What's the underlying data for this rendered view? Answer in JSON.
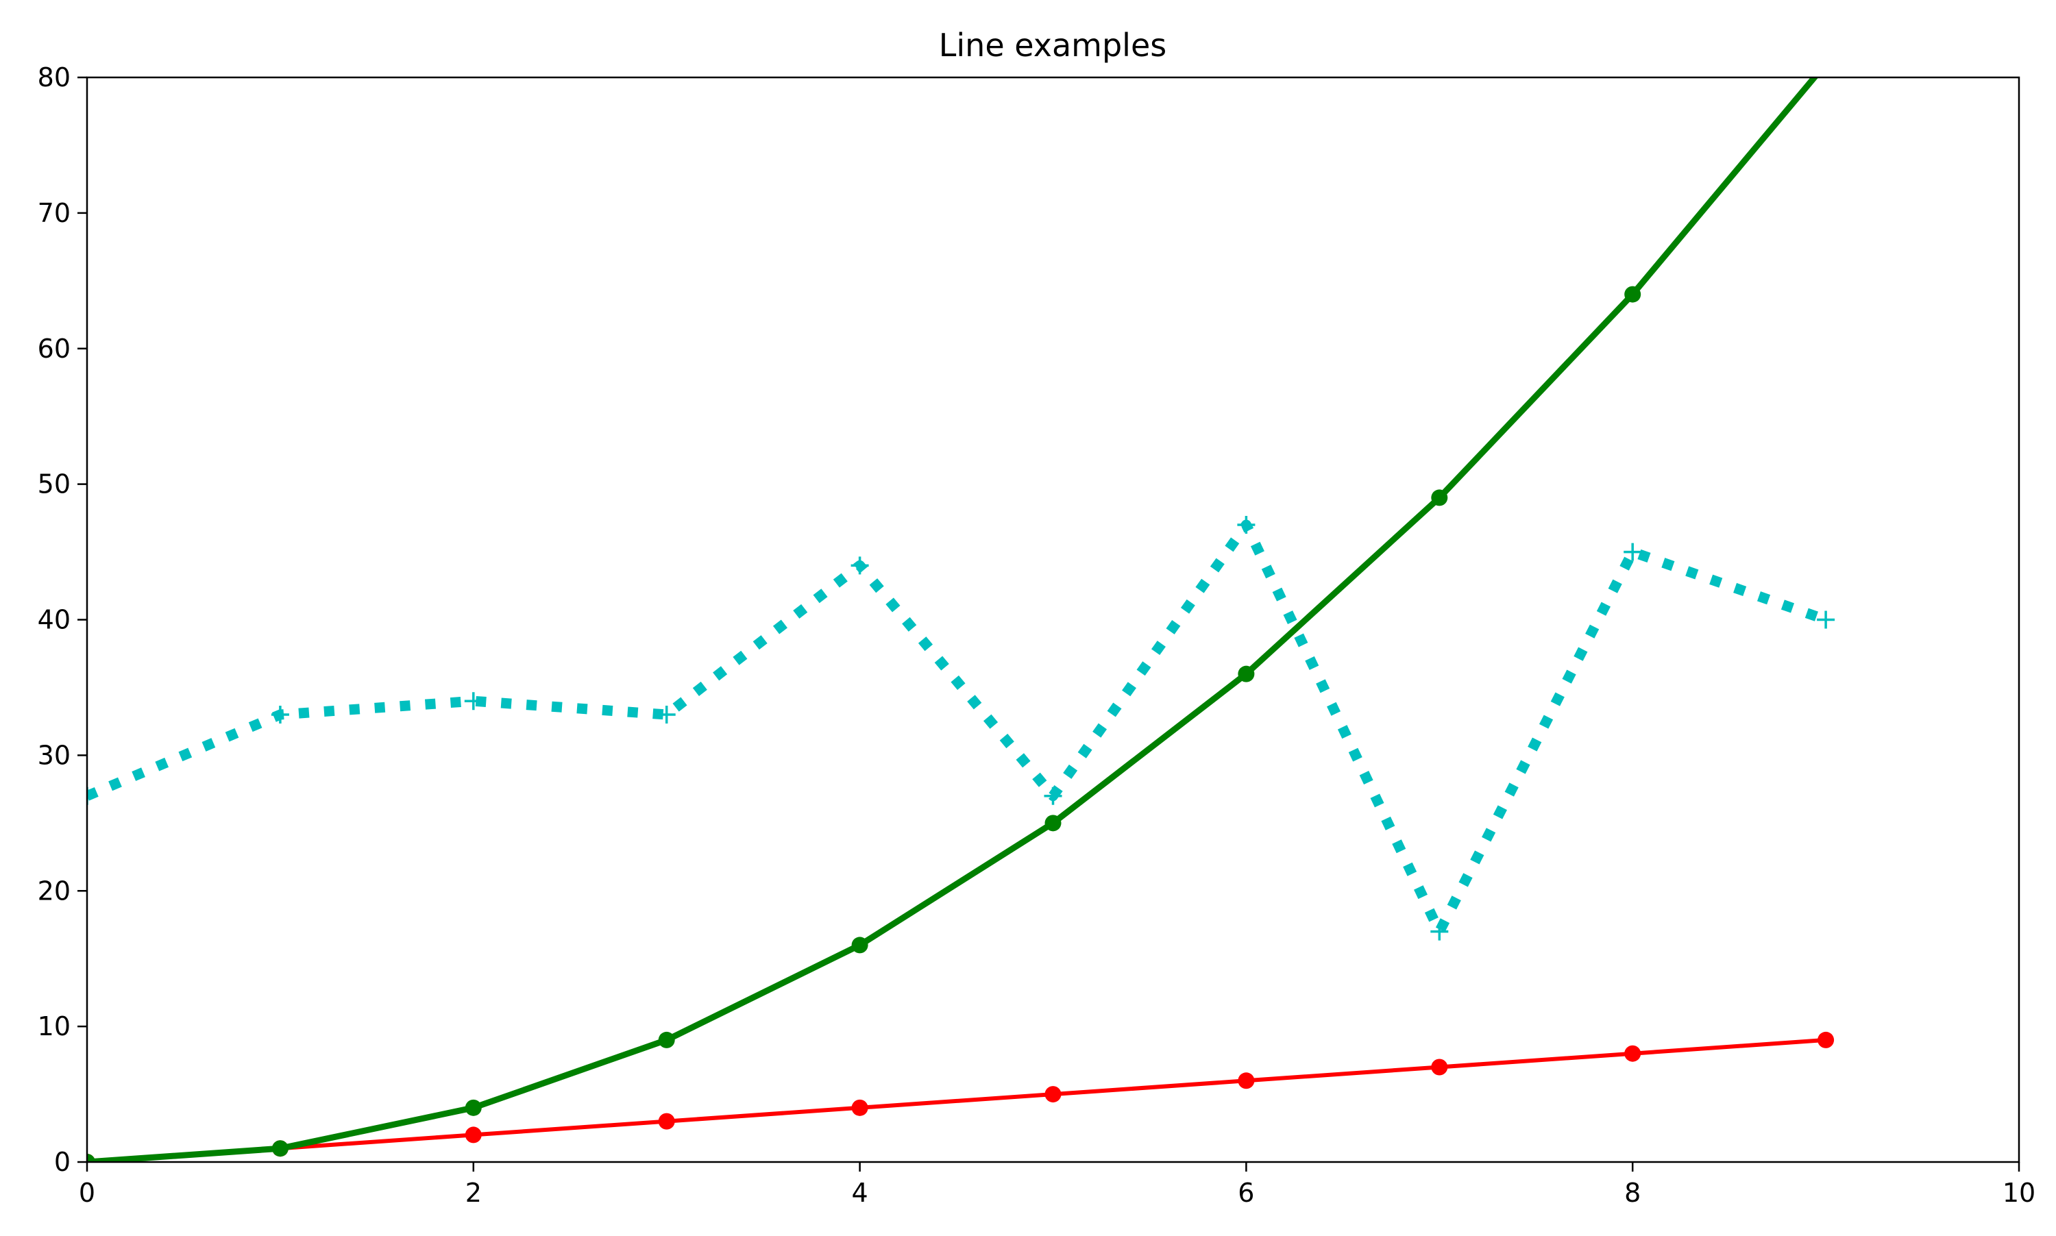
{
  "chart_data": {
    "type": "line",
    "title": "Line examples",
    "xlabel": "",
    "ylabel": "",
    "xlim": [
      0,
      10
    ],
    "ylim": [
      0,
      80
    ],
    "xticks": [
      0,
      2,
      4,
      6,
      8,
      10
    ],
    "yticks": [
      0,
      10,
      20,
      30,
      40,
      50,
      60,
      70,
      80
    ],
    "xtick_labels": [
      "0",
      "2",
      "4",
      "6",
      "8",
      "10"
    ],
    "ytick_labels": [
      "0",
      "10",
      "20",
      "30",
      "40",
      "50",
      "60",
      "70",
      "80"
    ],
    "grid": false,
    "legend": "none",
    "series": [
      {
        "x": [
          0,
          1,
          2,
          3,
          4,
          5,
          6,
          7,
          8,
          9
        ],
        "y": [
          0,
          1,
          2,
          3,
          4,
          5,
          6,
          7,
          8,
          9
        ],
        "color": "#ff0000",
        "line_style": "solid",
        "marker": "circle"
      },
      {
        "x": [
          0,
          1,
          2,
          3,
          4,
          5,
          6,
          7,
          8,
          9
        ],
        "y": [
          0,
          1,
          4,
          9,
          16,
          25,
          36,
          49,
          64,
          81
        ],
        "color": "#008000",
        "line_style": "solid",
        "marker": "circle"
      },
      {
        "x": [
          0,
          1,
          2,
          3,
          4,
          5,
          6,
          7,
          8,
          9
        ],
        "y": [
          27,
          33,
          34,
          33,
          44,
          27,
          47,
          17,
          45,
          40
        ],
        "color": "#00bfbf",
        "line_style": "dotted",
        "marker": "plus"
      }
    ]
  }
}
